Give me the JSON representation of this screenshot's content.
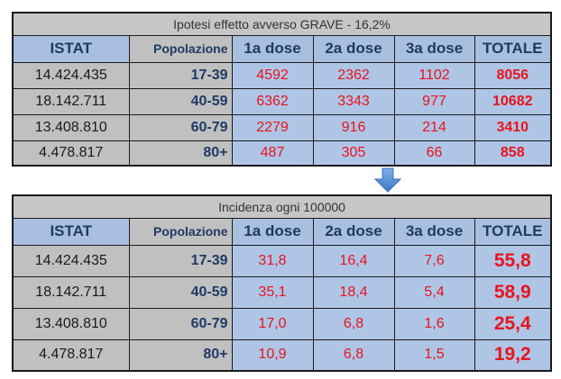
{
  "table1": {
    "title": "Ipotesi effetto avverso GRAVE - 16,2%",
    "headers": [
      "ISTAT",
      "Popolazione",
      "1a dose",
      "2a dose",
      "3a dose",
      "TOTALE"
    ],
    "rows": [
      [
        "14.424.435",
        "17-39",
        "4592",
        "2362",
        "1102",
        "8056"
      ],
      [
        "18.142.711",
        "40-59",
        "6362",
        "3343",
        "977",
        "10682"
      ],
      [
        "13.408.810",
        "60-79",
        "2279",
        "916",
        "214",
        "3410"
      ],
      [
        "4.478.817",
        "80+",
        "487",
        "305",
        "66",
        "858"
      ]
    ]
  },
  "arrow_icon": "down-arrow-icon",
  "table2": {
    "title": "Incidenza ogni 100000",
    "headers": [
      "ISTAT",
      "Popolazione",
      "1a dose",
      "2a dose",
      "3a dose",
      "TOTALE"
    ],
    "rows": [
      [
        "14.424.435",
        "17-39",
        "31,8",
        "16,4",
        "7,6",
        "55,8"
      ],
      [
        "18.142.711",
        "40-59",
        "35,1",
        "18,4",
        "5,4",
        "58,9"
      ],
      [
        "13.408.810",
        "60-79",
        "17,0",
        "6,8",
        "1,6",
        "25,4"
      ],
      [
        "4.478.817",
        "80+",
        "10,9",
        "6,8",
        "1,5",
        "19,2"
      ]
    ]
  },
  "colors": {
    "title_bg": "#c6c6c6",
    "header_bg": "#a9bfe0",
    "header_text": "#1f3a64",
    "left_bg": "#c0c0c0",
    "value_bg": "#afc5e6",
    "value_text": "#e8141c",
    "arrow": "#4a86cf"
  }
}
